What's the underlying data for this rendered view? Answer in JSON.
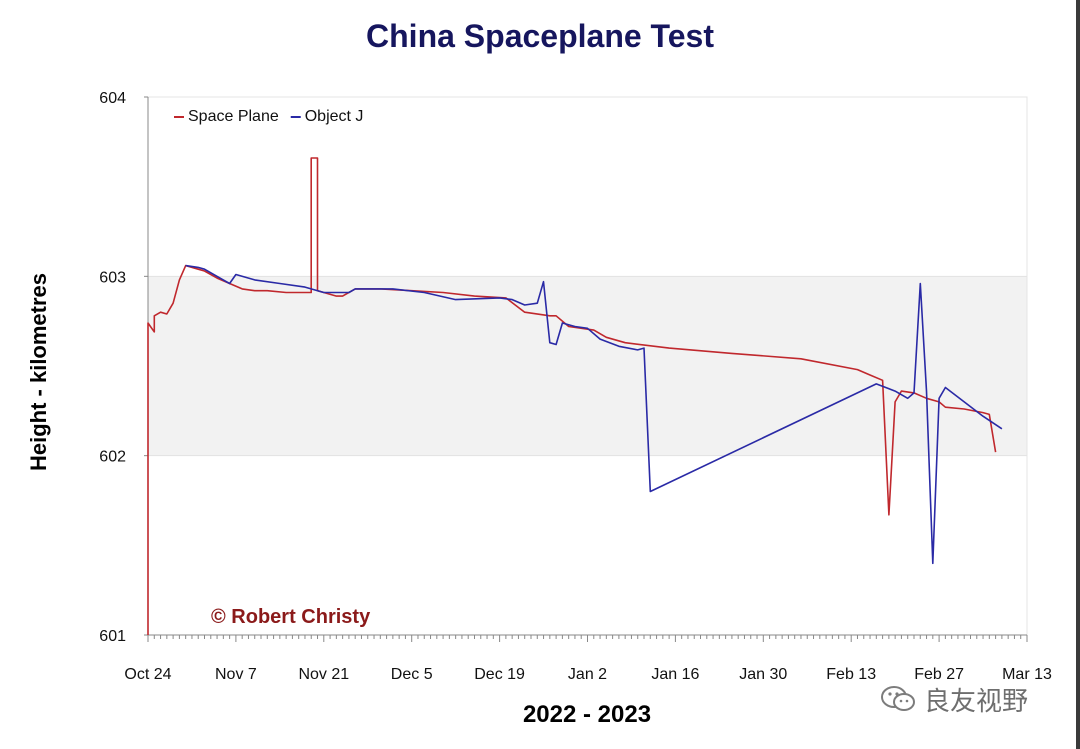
{
  "chart_data": {
    "type": "line",
    "title": "China Spaceplane Test",
    "xlabel": "2022 - 2023",
    "ylabel": "Height - kilometres",
    "ylim": [
      601,
      604
    ],
    "yticks": [
      601,
      602,
      603,
      604
    ],
    "x_axis_dates": [
      "2022-10-24",
      "2023-03-13"
    ],
    "xticks": [
      "Oct 24",
      "Nov 7",
      "Nov 21",
      "Dec 5",
      "Dec 19",
      "Jan 2",
      "Jan 16",
      "Jan 30",
      "Feb 13",
      "Feb 27",
      "Mar 13"
    ],
    "shaded_band": [
      602,
      603
    ],
    "legend_position": "top-left",
    "annotation": "© Robert Christy",
    "series": [
      {
        "name": "Space Plane",
        "color": "#c0282d",
        "points": [
          [
            "2022-10-24",
            601.0
          ],
          [
            "2022-10-24",
            602.74
          ],
          [
            "2022-10-25",
            602.69
          ],
          [
            "2022-10-25",
            602.78
          ],
          [
            "2022-10-26",
            602.8
          ],
          [
            "2022-10-27",
            602.79
          ],
          [
            "2022-10-28",
            602.85
          ],
          [
            "2022-10-29",
            602.98
          ],
          [
            "2022-10-30",
            603.06
          ],
          [
            "2022-11-01",
            603.04
          ],
          [
            "2022-11-02",
            603.03
          ],
          [
            "2022-11-04",
            602.99
          ],
          [
            "2022-11-06",
            602.96
          ],
          [
            "2022-11-08",
            602.93
          ],
          [
            "2022-11-10",
            602.92
          ],
          [
            "2022-11-12",
            602.92
          ],
          [
            "2022-11-15",
            602.91
          ],
          [
            "2022-11-18",
            602.91
          ],
          [
            "2022-11-19",
            602.91
          ],
          [
            "2022-11-19",
            603.66
          ],
          [
            "2022-11-20",
            603.66
          ],
          [
            "2022-11-20",
            602.92
          ],
          [
            "2022-11-21",
            602.91
          ],
          [
            "2022-11-23",
            602.89
          ],
          [
            "2022-11-24",
            602.89
          ],
          [
            "2022-11-26",
            602.93
          ],
          [
            "2022-11-30",
            602.93
          ],
          [
            "2022-12-05",
            602.92
          ],
          [
            "2022-12-10",
            602.91
          ],
          [
            "2022-12-15",
            602.89
          ],
          [
            "2022-12-20",
            602.88
          ],
          [
            "2022-12-23",
            602.8
          ],
          [
            "2022-12-27",
            602.78
          ],
          [
            "2022-12-28",
            602.78
          ],
          [
            "2022-12-30",
            602.72
          ],
          [
            "2023-01-03",
            602.7
          ],
          [
            "2023-01-05",
            602.66
          ],
          [
            "2023-01-08",
            602.63
          ],
          [
            "2023-01-15",
            602.6
          ],
          [
            "2023-01-25",
            602.57
          ],
          [
            "2023-02-05",
            602.54
          ],
          [
            "2023-02-14",
            602.48
          ],
          [
            "2023-02-16",
            602.45
          ],
          [
            "2023-02-18",
            602.42
          ],
          [
            "2023-02-19",
            601.67
          ],
          [
            "2023-02-20",
            602.3
          ],
          [
            "2023-02-21",
            602.36
          ],
          [
            "2023-02-23",
            602.35
          ],
          [
            "2023-02-25",
            602.32
          ],
          [
            "2023-02-27",
            602.3
          ],
          [
            "2023-02-28",
            602.27
          ],
          [
            "2023-03-03",
            602.26
          ],
          [
            "2023-03-06",
            602.24
          ],
          [
            "2023-03-07",
            602.23
          ],
          [
            "2023-03-08",
            602.02
          ]
        ]
      },
      {
        "name": "Object J",
        "color": "#2a2aa6",
        "points": [
          [
            "2022-10-30",
            603.06
          ],
          [
            "2022-11-01",
            603.05
          ],
          [
            "2022-11-02",
            603.04
          ],
          [
            "2022-11-05",
            602.98
          ],
          [
            "2022-11-06",
            602.96
          ],
          [
            "2022-11-07",
            603.01
          ],
          [
            "2022-11-10",
            602.98
          ],
          [
            "2022-11-14",
            602.96
          ],
          [
            "2022-11-18",
            602.94
          ],
          [
            "2022-11-21",
            602.91
          ],
          [
            "2022-11-25",
            602.91
          ],
          [
            "2022-11-26",
            602.93
          ],
          [
            "2022-12-02",
            602.93
          ],
          [
            "2022-12-07",
            602.91
          ],
          [
            "2022-12-12",
            602.87
          ],
          [
            "2022-12-19",
            602.88
          ],
          [
            "2022-12-21",
            602.87
          ],
          [
            "2022-12-23",
            602.84
          ],
          [
            "2022-12-25",
            602.85
          ],
          [
            "2022-12-26",
            602.97
          ],
          [
            "2022-12-27",
            602.63
          ],
          [
            "2022-12-28",
            602.62
          ],
          [
            "2022-12-29",
            602.74
          ],
          [
            "2022-12-31",
            602.72
          ],
          [
            "2023-01-02",
            602.71
          ],
          [
            "2023-01-04",
            602.65
          ],
          [
            "2023-01-07",
            602.61
          ],
          [
            "2023-01-10",
            602.59
          ],
          [
            "2023-01-11",
            602.6
          ],
          [
            "2023-01-12",
            601.8
          ],
          [
            "2023-02-17",
            602.4
          ],
          [
            "2023-02-20",
            602.36
          ],
          [
            "2023-02-21",
            602.34
          ],
          [
            "2023-02-22",
            602.32
          ],
          [
            "2023-02-23",
            602.35
          ],
          [
            "2023-02-24",
            602.96
          ],
          [
            "2023-02-25",
            602.36
          ],
          [
            "2023-02-26",
            601.4
          ],
          [
            "2023-02-27",
            602.32
          ],
          [
            "2023-02-28",
            602.38
          ],
          [
            "2023-03-03",
            602.3
          ],
          [
            "2023-03-06",
            602.22
          ],
          [
            "2023-03-09",
            602.15
          ]
        ]
      }
    ]
  },
  "watermark": {
    "text": "良友视野",
    "icon": "wechat-icon"
  }
}
